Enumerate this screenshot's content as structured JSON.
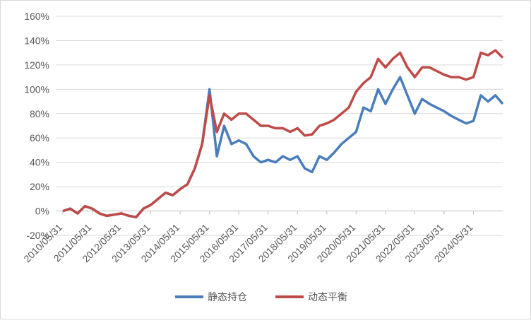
{
  "chart_data": {
    "type": "line",
    "categories": [
      "2010/05/31",
      null,
      null,
      null,
      "2011/05/31",
      null,
      null,
      null,
      "2012/05/31",
      null,
      null,
      null,
      "2013/05/31",
      null,
      null,
      null,
      "2014/05/31",
      null,
      null,
      null,
      "2015/05/31",
      null,
      null,
      null,
      "2016/05/31",
      null,
      null,
      null,
      "2017/05/31",
      null,
      null,
      null,
      "2018/05/31",
      null,
      null,
      null,
      "2019/05/31",
      null,
      null,
      null,
      "2020/05/31",
      null,
      null,
      null,
      "2021/05/31",
      null,
      null,
      null,
      "2022/05/31",
      null,
      null,
      null,
      "2023/05/31",
      null,
      null,
      null,
      "2024/05/31",
      null,
      null,
      null,
      null
    ],
    "series": [
      {
        "name": "静态持仓",
        "color": "#4a7ebb",
        "values": [
          0,
          2,
          -2,
          4,
          2,
          -2,
          -4,
          -3,
          -2,
          -4,
          -5,
          2,
          5,
          10,
          15,
          13,
          18,
          22,
          35,
          55,
          100,
          45,
          70,
          55,
          58,
          55,
          45,
          40,
          42,
          40,
          45,
          42,
          45,
          35,
          32,
          45,
          42,
          48,
          55,
          60,
          65,
          85,
          82,
          100,
          88,
          100,
          110,
          95,
          80,
          92,
          88,
          85,
          82,
          78,
          75,
          72,
          74,
          95,
          90,
          95,
          88
        ]
      },
      {
        "name": "动态平衡",
        "color": "#be4b48",
        "values": [
          0,
          2,
          -2,
          4,
          2,
          -2,
          -4,
          -3,
          -2,
          -4,
          -5,
          2,
          5,
          10,
          15,
          13,
          18,
          22,
          35,
          55,
          95,
          65,
          80,
          75,
          80,
          80,
          75,
          70,
          70,
          68,
          68,
          65,
          68,
          62,
          63,
          70,
          72,
          75,
          80,
          85,
          98,
          105,
          110,
          125,
          118,
          125,
          130,
          118,
          110,
          118,
          118,
          115,
          112,
          110,
          110,
          108,
          110,
          130,
          128,
          132,
          126
        ]
      }
    ],
    "ylim": [
      -20,
      160
    ],
    "yticks": [
      {
        "value": -20,
        "label": "-20%"
      },
      {
        "value": 0,
        "label": "0%"
      },
      {
        "value": 20,
        "label": "20%"
      },
      {
        "value": 40,
        "label": "40%"
      },
      {
        "value": 60,
        "label": "60%"
      },
      {
        "value": 80,
        "label": "80%"
      },
      {
        "value": 100,
        "label": "100%"
      },
      {
        "value": 120,
        "label": "120%"
      },
      {
        "value": 140,
        "label": "140%"
      },
      {
        "value": 160,
        "label": "160%"
      }
    ],
    "grid": true,
    "legend": "bottom"
  }
}
